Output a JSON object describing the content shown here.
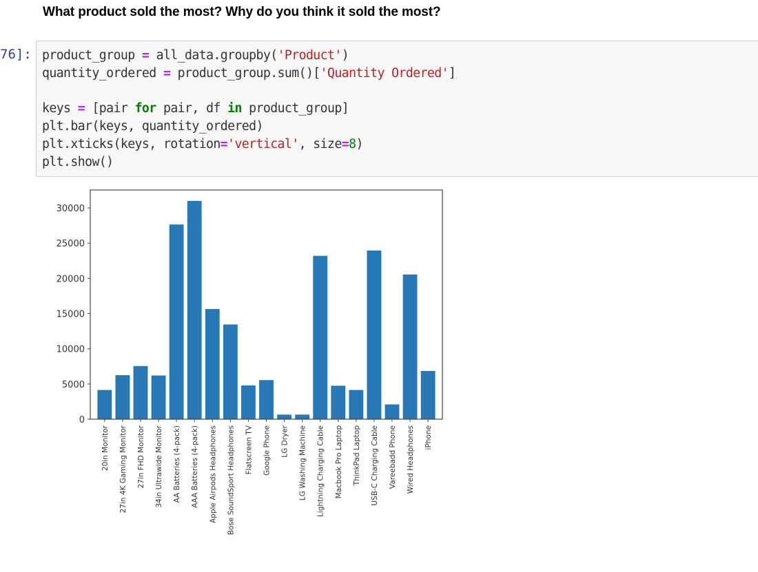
{
  "markdown": {
    "question": "What product sold the most? Why do you think it sold the most?"
  },
  "code_cell": {
    "prompt": "76]:",
    "lines": [
      "product_group = all_data.groupby('Product')",
      "quantity_ordered = product_group.sum()['Quantity Ordered']",
      "",
      "keys = [pair for pair, df in product_group]",
      "plt.bar(keys, quantity_ordered)",
      "plt.xticks(keys, rotation='vertical', size=8)",
      "plt.show()"
    ]
  },
  "colors": {
    "bar": "#2878b5",
    "string": "#ba2121",
    "operator": "#aa22ff",
    "keyword": "#008000",
    "prompt": "#303f9f",
    "cell_bg": "#f7f7f7"
  },
  "chart_data": {
    "type": "bar",
    "title": "",
    "xlabel": "",
    "ylabel": "",
    "categories": [
      "20in Monitor",
      "27in 4K Gaming Monitor",
      "27in FHD Monitor",
      "34in Ultrawide Monitor",
      "AA Batteries (4-pack)",
      "AAA Batteries (4-pack)",
      "Apple Airpods Headphones",
      "Bose SoundSport Headphones",
      "Flatscreen TV",
      "Google Phone",
      "LG Dryer",
      "LG Washing Machine",
      "Lightning Charging Cable",
      "Macbook Pro Laptop",
      "ThinkPad Laptop",
      "USB-C Charging Cable",
      "Vareebadd Phone",
      "Wired Headphones",
      "iPhone"
    ],
    "values": [
      4150,
      6250,
      7550,
      6200,
      27650,
      31000,
      15650,
      13450,
      4800,
      5550,
      650,
      650,
      23200,
      4750,
      4150,
      23950,
      2100,
      20550,
      6850
    ],
    "yticks": [
      0,
      5000,
      10000,
      15000,
      20000,
      25000,
      30000
    ],
    "ylim": [
      0,
      32550
    ],
    "grid": false,
    "legend": null,
    "xtick_rotation": "vertical"
  }
}
